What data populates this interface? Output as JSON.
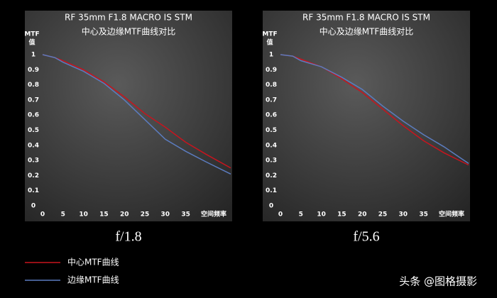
{
  "chart_data": [
    {
      "type": "line",
      "title": "RF 35mm F1.8 MACRO IS STM",
      "subtitle": "中心及边缘MTF曲线对比",
      "ylabel": [
        "MTF",
        "值"
      ],
      "xlabel": "空间频率",
      "caption": "f/1.8",
      "x": [
        0,
        3,
        5,
        10,
        15,
        20,
        25,
        30,
        35,
        40,
        46
      ],
      "series": [
        {
          "name": "中心MTF曲线",
          "color": "#c8141e",
          "values": [
            1.0,
            0.98,
            0.96,
            0.9,
            0.82,
            0.72,
            0.61,
            0.52,
            0.42,
            0.34,
            0.25
          ]
        },
        {
          "name": "边缘MTF曲线",
          "color": "#5b7cbf",
          "values": [
            1.0,
            0.98,
            0.95,
            0.89,
            0.81,
            0.7,
            0.57,
            0.44,
            0.36,
            0.29,
            0.21
          ]
        }
      ],
      "xlim": [
        0,
        46
      ],
      "xticks": [
        0,
        5,
        10,
        15,
        20,
        25,
        30,
        35
      ],
      "ylim": [
        0,
        1
      ],
      "yticks": [
        0,
        0.1,
        0.2,
        0.3,
        0.4,
        0.5,
        0.6,
        0.7,
        0.8,
        0.9,
        1
      ]
    },
    {
      "type": "line",
      "title": "RF 35mm F1.8 MACRO IS STM",
      "subtitle": "中心及边缘MTF曲线对比",
      "ylabel": [
        "MTF",
        "值"
      ],
      "xlabel": "空间频率",
      "caption": "f/5.6",
      "x": [
        0,
        3,
        5,
        10,
        15,
        20,
        25,
        30,
        35,
        40,
        46
      ],
      "series": [
        {
          "name": "中心MTF曲线",
          "color": "#c8141e",
          "values": [
            1.0,
            0.99,
            0.97,
            0.92,
            0.84,
            0.75,
            0.64,
            0.53,
            0.43,
            0.35,
            0.27
          ]
        },
        {
          "name": "边缘MTF曲线",
          "color": "#5b7cbf",
          "values": [
            1.0,
            0.99,
            0.96,
            0.92,
            0.85,
            0.77,
            0.66,
            0.56,
            0.47,
            0.39,
            0.28
          ]
        }
      ],
      "xlim": [
        0,
        46
      ],
      "xticks": [
        0,
        5,
        10,
        15,
        20,
        25,
        30,
        35
      ],
      "ylim": [
        0,
        1
      ],
      "yticks": [
        0,
        0.1,
        0.2,
        0.3,
        0.4,
        0.5,
        0.6,
        0.7,
        0.8,
        0.9,
        1
      ]
    }
  ],
  "watermark": "头条 @图格摄影"
}
